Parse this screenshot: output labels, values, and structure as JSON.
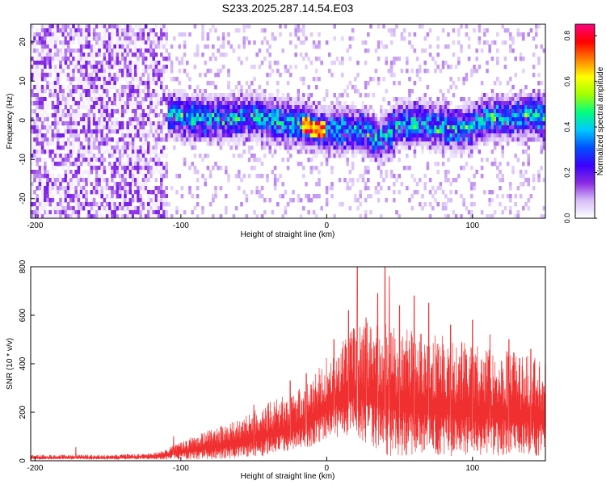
{
  "figure": {
    "title": "S233.2025.287.14.54.E03",
    "colors": {
      "trace": "#f03030",
      "axis": "#000000",
      "background": "#ffffff"
    }
  },
  "chart_data": [
    {
      "type": "heatmap",
      "name": "spectrogram",
      "title": "S233.2025.287.14.54.E03",
      "xlabel": "Height of straight line (km)",
      "ylabel": "Frequency (Hz)",
      "xlim": [
        -203,
        150
      ],
      "ylim": [
        -25,
        24.5
      ],
      "xticks": [
        -200,
        -100,
        0,
        100
      ],
      "yticks": [
        -20,
        -10,
        0,
        10,
        20
      ],
      "colorbar": {
        "label": "Normalized spectral amplitude",
        "range": [
          0.0,
          0.85
        ],
        "ticks": [
          0.0,
          0.2,
          0.4,
          0.6,
          0.8
        ],
        "colormap": [
          "#ffffff",
          "#d8bff8",
          "#8a2be2",
          "#3a00ff",
          "#0050ff",
          "#00c8ff",
          "#00ff80",
          "#a0ff00",
          "#ffff00",
          "#ff8000",
          "#ff0000",
          "#ff0080"
        ]
      },
      "ridge": [
        {
          "x": -110,
          "y": 2
        },
        {
          "x": -90,
          "y": 1
        },
        {
          "x": -70,
          "y": 1
        },
        {
          "x": -50,
          "y": 1.5
        },
        {
          "x": -30,
          "y": 0
        },
        {
          "x": -15,
          "y": -1
        },
        {
          "x": -5,
          "y": -2
        },
        {
          "x": 0,
          "y": -2
        },
        {
          "x": 10,
          "y": -2
        },
        {
          "x": 25,
          "y": -2
        },
        {
          "x": 35,
          "y": -5
        },
        {
          "x": 50,
          "y": 0
        },
        {
          "x": 75,
          "y": -1
        },
        {
          "x": 90,
          "y": -2
        },
        {
          "x": 110,
          "y": 1
        },
        {
          "x": 125,
          "y": 1
        },
        {
          "x": 140,
          "y": 2
        },
        {
          "x": 150,
          "y": 1
        }
      ],
      "peak": {
        "x": -10,
        "y": -2,
        "value": 0.85
      }
    },
    {
      "type": "line",
      "name": "snr",
      "xlabel": "Height of straight line (km)",
      "ylabel": "SNR (10 * v/v)",
      "xlim": [
        -203,
        150
      ],
      "ylim": [
        0,
        800
      ],
      "xticks": [
        -200,
        -100,
        0,
        100
      ],
      "yticks": [
        0,
        200,
        400,
        600,
        800
      ],
      "series": [
        {
          "name": "SNR",
          "color": "#f03030",
          "envelope": {
            "x": [
              -203,
              -180,
              -150,
              -120,
              -110,
              -100,
              -80,
              -60,
              -40,
              -20,
              -10,
              0,
              10,
              20,
              40,
              60,
              80,
              100,
              120,
              150
            ],
            "lower": [
              5,
              5,
              5,
              5,
              5,
              5,
              5,
              10,
              20,
              40,
              60,
              90,
              100,
              100,
              20,
              20,
              20,
              20,
              20,
              20
            ],
            "upper": [
              25,
              25,
              25,
              30,
              50,
              80,
              130,
              170,
              240,
              290,
              340,
              430,
              490,
              570,
              580,
              540,
              520,
              480,
              460,
              420
            ]
          },
          "spikes": [
            {
              "x": -172,
              "y": 55
            },
            {
              "x": -105,
              "y": 100
            },
            {
              "x": -50,
              "y": 230
            },
            {
              "x": -25,
              "y": 330
            },
            {
              "x": -14,
              "y": 360
            },
            {
              "x": 5,
              "y": 500
            },
            {
              "x": 15,
              "y": 620
            },
            {
              "x": 21,
              "y": 800
            },
            {
              "x": 27,
              "y": 590
            },
            {
              "x": 35,
              "y": 690
            },
            {
              "x": 40,
              "y": 800
            },
            {
              "x": 43,
              "y": 760
            },
            {
              "x": 50,
              "y": 640
            },
            {
              "x": 60,
              "y": 680
            },
            {
              "x": 70,
              "y": 650
            },
            {
              "x": 85,
              "y": 560
            },
            {
              "x": 100,
              "y": 580
            },
            {
              "x": 112,
              "y": 520
            },
            {
              "x": 125,
              "y": 500
            },
            {
              "x": 140,
              "y": 460
            }
          ]
        }
      ]
    }
  ]
}
